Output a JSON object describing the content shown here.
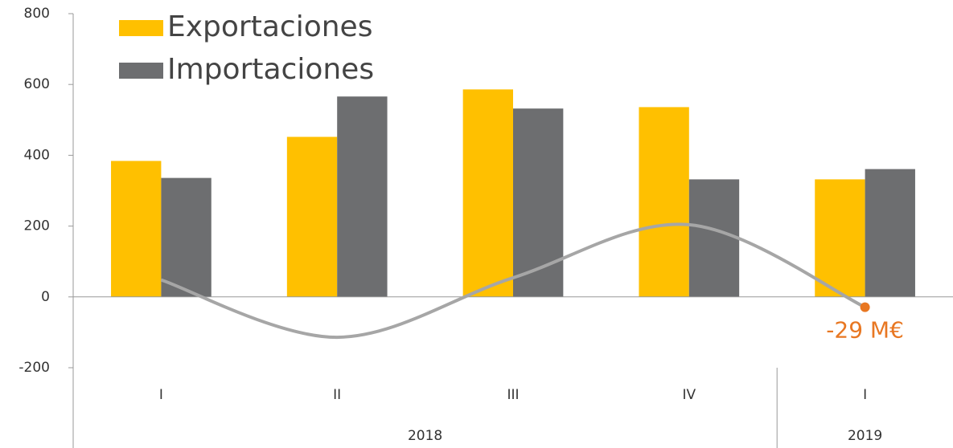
{
  "chart_data": {
    "type": "bar",
    "categories": [
      "I",
      "II",
      "III",
      "IV",
      "I"
    ],
    "groups": [
      {
        "label": "2018",
        "span": 4
      },
      {
        "label": "2019",
        "span": 1
      }
    ],
    "series": [
      {
        "name": "Exportaciones",
        "color": "#ffc000",
        "values": [
          384,
          452,
          586,
          536,
          332
        ]
      },
      {
        "name": "Importaciones",
        "color": "#6d6e70",
        "values": [
          336,
          566,
          532,
          332,
          361
        ]
      }
    ],
    "line": {
      "type": "line",
      "color": "#a6a6a6",
      "marker_color": "#e87722",
      "values": [
        48,
        -114,
        54,
        204,
        -29
      ],
      "value_labels": [
        null,
        null,
        null,
        null,
        "-29 M€"
      ]
    },
    "ylim": [
      -200,
      800
    ],
    "yticks": [
      -200,
      0,
      200,
      400,
      600,
      800
    ]
  }
}
